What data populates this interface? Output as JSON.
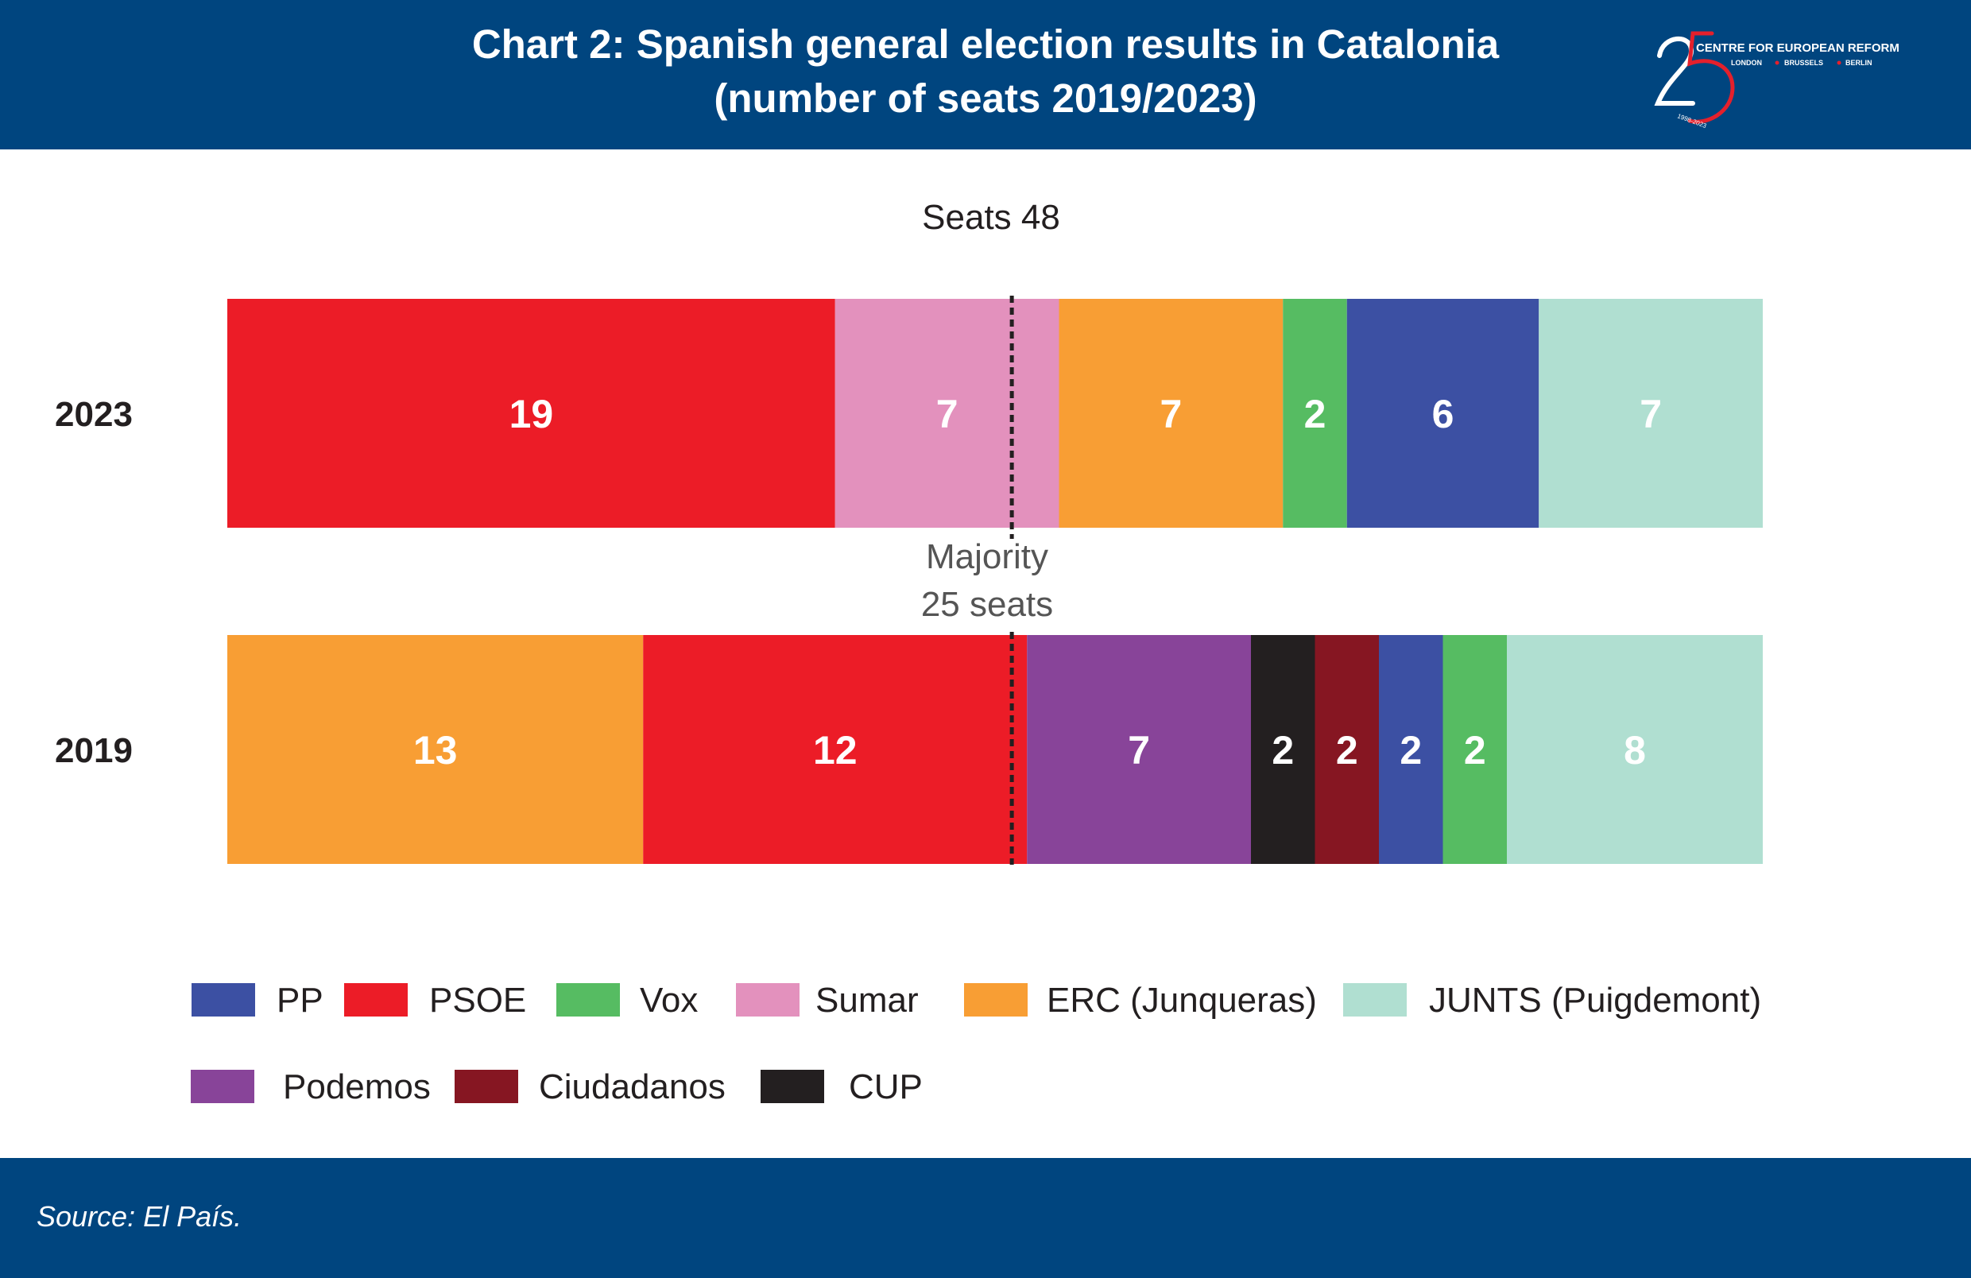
{
  "title_line1": "Chart 2: Spanish general election results in Catalonia",
  "title_line2": "(number of seats 2019/2023)",
  "logo": {
    "number": "25",
    "org": "CENTRE FOR EUROPEAN REFORM",
    "cities": [
      "LONDON",
      "BRUSSELS",
      "BERLIN"
    ],
    "years": "1998-2023",
    "accent": "#e4202c"
  },
  "source": "Source: El País.",
  "chart_data": {
    "type": "bar",
    "orientation": "horizontal",
    "stacked": true,
    "seats_label": "Seats 48",
    "total": 48,
    "majority": {
      "value": 25,
      "label_line1": "Majority",
      "label_line2": "25 seats"
    },
    "rows": [
      {
        "label": "2023",
        "segments": [
          {
            "party": "PSOE",
            "value": 19
          },
          {
            "party": "Sumar",
            "value": 7
          },
          {
            "party": "ERC (Junqueras)",
            "value": 7
          },
          {
            "party": "Vox",
            "value": 2
          },
          {
            "party": "PP",
            "value": 6
          },
          {
            "party": "JUNTS (Puigdemont)",
            "value": 7
          }
        ]
      },
      {
        "label": "2019",
        "segments": [
          {
            "party": "ERC (Junqueras)",
            "value": 13
          },
          {
            "party": "PSOE",
            "value": 12
          },
          {
            "party": "Podemos",
            "value": 7
          },
          {
            "party": "CUP",
            "value": 2
          },
          {
            "party": "Ciudadanos",
            "value": 2
          },
          {
            "party": "PP",
            "value": 2
          },
          {
            "party": "Vox",
            "value": 2
          },
          {
            "party": "JUNTS (Puigdemont)",
            "value": 8
          }
        ]
      }
    ],
    "colors": {
      "PP": "#3c50a3",
      "PSOE": "#ec1c27",
      "Vox": "#56bc62",
      "Sumar": "#e391bd",
      "ERC (Junqueras)": "#f89e34",
      "JUNTS (Puigdemont)": "#b0dfd1",
      "Podemos": "#884499",
      "Ciudadanos": "#861622",
      "CUP": "#231f20"
    },
    "legend": [
      [
        "PP",
        "PSOE",
        "Vox",
        "Sumar",
        "ERC (Junqueras)",
        "JUNTS (Puigdemont)"
      ],
      [
        "Podemos",
        "Ciudadanos",
        "CUP"
      ]
    ]
  }
}
